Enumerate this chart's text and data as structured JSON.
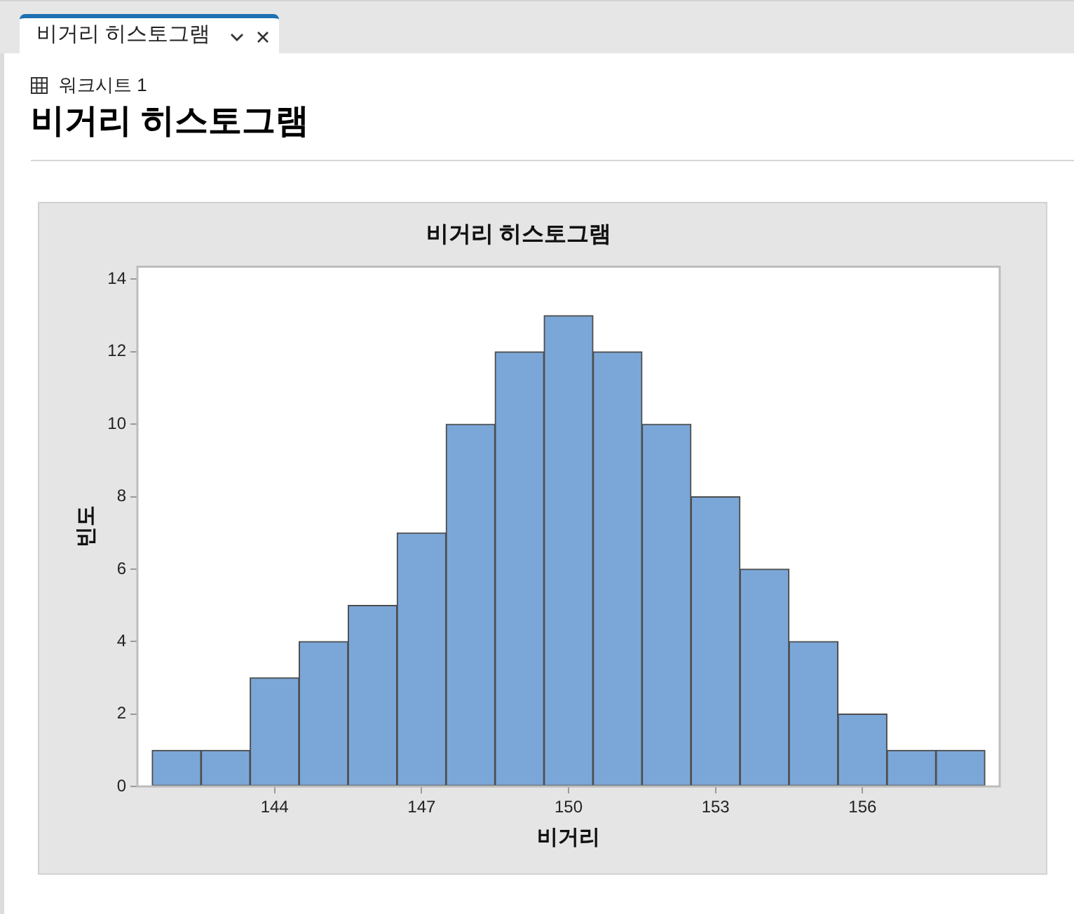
{
  "chart_data": {
    "type": "histogram",
    "title": "비거리 히스토그램",
    "xlabel": "비거리",
    "ylabel": "빈도",
    "annotations": [
      "비거리 히스토그램",
      "워크시트 1",
      "비거리 히스토그램"
    ],
    "bins": [
      141.5,
      142.5,
      143.5,
      144.5,
      145.5,
      146.5,
      147.5,
      148.5,
      149.5,
      150.5,
      151.5,
      152.5,
      153.5,
      154.5,
      155.5,
      156.5,
      157.5,
      158.5
    ],
    "values": [
      1,
      1,
      3,
      4,
      5,
      7,
      10,
      12,
      13,
      12,
      10,
      8,
      6,
      4,
      2,
      1,
      1
    ],
    "color": "#7ba7d8",
    "xlim": [
      141.2,
      158.8
    ],
    "ylim": [
      0,
      14.35
    ],
    "xticks": [
      144,
      147,
      150,
      153,
      156
    ],
    "yticks": [
      0,
      2,
      4,
      6,
      8,
      10,
      12,
      14
    ],
    "grid": false
  }
}
